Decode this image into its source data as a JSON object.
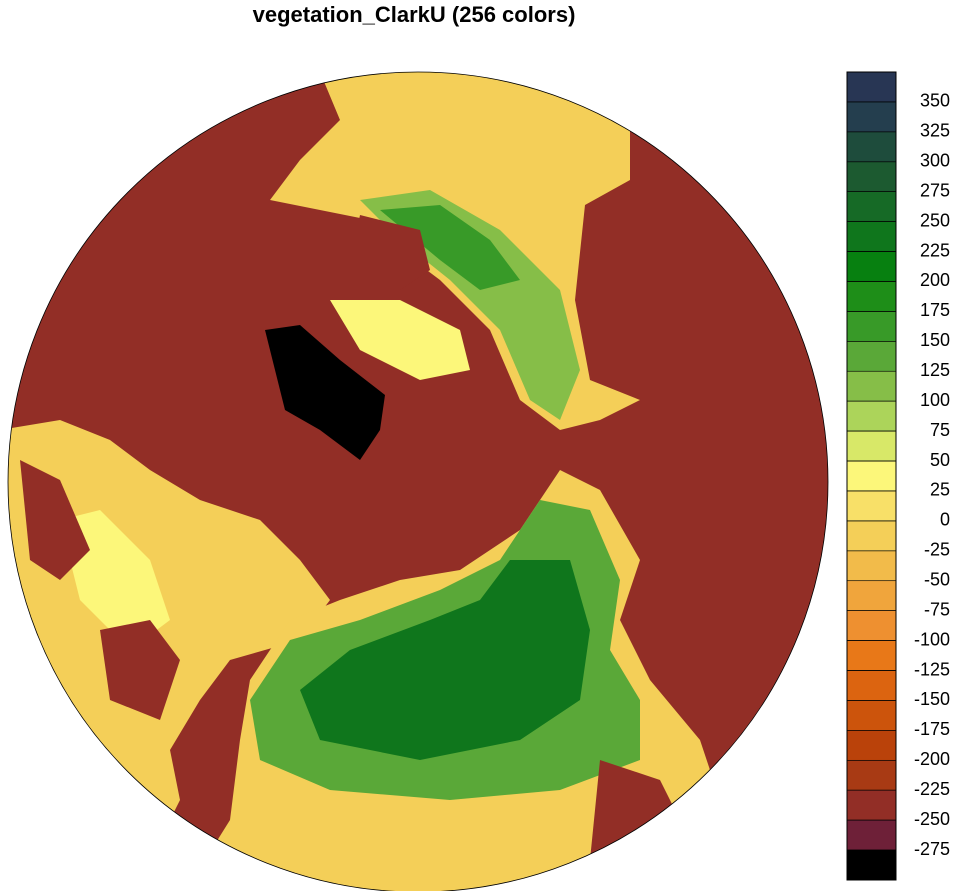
{
  "title": "vegetation_ClarkU (256 colors)",
  "colorbar": {
    "ticks": [
      350,
      325,
      300,
      275,
      250,
      225,
      200,
      175,
      150,
      125,
      100,
      75,
      50,
      25,
      0,
      -25,
      -50,
      -75,
      -100,
      -125,
      -150,
      -175,
      -200,
      -225,
      -250,
      -275
    ],
    "colors": [
      "#283654",
      "#243e4e",
      "#1e4c3c",
      "#1c5a30",
      "#166a26",
      "#0f761c",
      "#078010",
      "#1e8e18",
      "#389a28",
      "#5aa838",
      "#86be48",
      "#acd45a",
      "#d8e868",
      "#fcf77a",
      "#f8e068",
      "#f4cf58",
      "#f2bb4a",
      "#f0a53c",
      "#ee9030",
      "#e87818",
      "#dc6410",
      "#cc540c",
      "#ba420a",
      "#a83a14",
      "#922e26",
      "#6e2038",
      "#000000"
    ]
  }
}
